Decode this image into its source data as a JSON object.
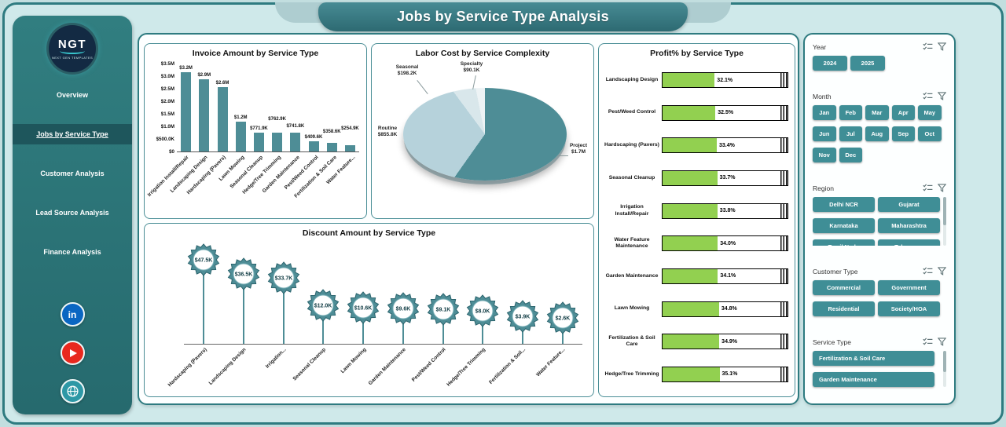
{
  "header": {
    "title": "Jobs by Service Type Analysis"
  },
  "sidebar": {
    "logo_text": "NGT",
    "logo_subtext": "NEXT GEN TEMPLATES",
    "items": [
      {
        "label": "Overview",
        "active": false
      },
      {
        "label": "Jobs by Service Type",
        "active": true
      },
      {
        "label": "Customer Analysis",
        "active": false
      },
      {
        "label": "Lead Source Analysis",
        "active": false
      },
      {
        "label": "Finance Analysis",
        "active": false
      }
    ],
    "social_icons": [
      "linkedin-icon",
      "youtube-icon",
      "globe-icon"
    ]
  },
  "filters": {
    "header_icons": [
      "checklist-icon",
      "funnel-icon"
    ],
    "sections": [
      {
        "id": "year",
        "label": "Year",
        "options": [
          "2024",
          "2025"
        ],
        "layout": "lay-year",
        "clipped": false,
        "scrollbar": false
      },
      {
        "id": "month",
        "label": "Month",
        "options": [
          "Jan",
          "Feb",
          "Mar",
          "Apr",
          "May",
          "Jun",
          "Jul",
          "Aug",
          "Sep",
          "Oct",
          "Nov",
          "Dec"
        ],
        "layout": "lay-month",
        "clipped": false,
        "scrollbar": false
      },
      {
        "id": "region",
        "label": "Region",
        "options": [
          "Delhi NCR",
          "Gujarat",
          "Karnataka",
          "Maharashtra",
          "Tamil Nadu",
          "Telangana"
        ],
        "layout": "lay-two",
        "clipped": true,
        "scrollbar": true
      },
      {
        "id": "customer-type",
        "label": "Customer Type",
        "options": [
          "Commercial",
          "Government",
          "Residential",
          "Society/HOA"
        ],
        "layout": "lay-two",
        "clipped": false,
        "scrollbar": false
      },
      {
        "id": "service-type",
        "label": "Service Type",
        "options": [
          "Fertilization & Soil Care",
          "Garden Maintenance"
        ],
        "layout": "lay-full",
        "clipped": false,
        "scrollbar": true
      }
    ]
  },
  "chart_data": [
    {
      "type": "bar",
      "title": "Invoice Amount by Service Type",
      "categories": [
        "Irrigation Install/Repair",
        "Landscaping Design",
        "Hardscaping (Pavers)",
        "Lawn Mowing",
        "Seasonal Cleanup",
        "Hedge/Tree Trimming",
        "Garden Maintenance",
        "Pest/Weed Control",
        "Fertilization & Soil Care",
        "Water Feature..."
      ],
      "values": [
        3200000,
        2900000,
        2600000,
        1200000,
        771900,
        762900,
        741800,
        409600,
        358600,
        254900
      ],
      "value_labels": [
        "$3.2M",
        "$2.9M",
        "$2.6M",
        "$1.2M",
        "$771.9K",
        "$762.9K",
        "$741.8K",
        "$409.6K",
        "$358.6K",
        "$254.9K"
      ],
      "y_ticks": [
        "$3.5M",
        "$3.0M",
        "$2.5M",
        "$2.0M",
        "$1.5M",
        "$1.0M",
        "$500.0K",
        "$0"
      ],
      "ylim": [
        0,
        3500000
      ],
      "grid": false,
      "xlabel": "",
      "ylabel": ""
    },
    {
      "type": "pie",
      "title": "Labor Cost by Service Complexity",
      "slices": [
        {
          "label": "Project",
          "value": 1700000,
          "value_label": "$1.7M"
        },
        {
          "label": "Routine",
          "value": 855800,
          "value_label": "$855.8K"
        },
        {
          "label": "Seasonal",
          "value": 198200,
          "value_label": "$198.2K"
        },
        {
          "label": "Specialty",
          "value": 90100,
          "value_label": "$90.1K"
        }
      ]
    },
    {
      "type": "bar",
      "orientation": "horizontal",
      "title": "Profit% by Service Type",
      "categories": [
        "Landscaping Design",
        "Pest/Weed Control",
        "Hardscaping (Pavers)",
        "Seasonal Cleanup",
        "Irrigation Install/Repair",
        "Water Feature Maintenance",
        "Garden Maintenance",
        "Lawn Mowing",
        "Fertilization & Soil Care",
        "Hedge/Tree Trimming"
      ],
      "values": [
        32.1,
        32.5,
        33.4,
        33.7,
        33.8,
        34.0,
        34.1,
        34.8,
        34.9,
        35.1
      ],
      "value_labels": [
        "32.1%",
        "32.5%",
        "33.4%",
        "33.7%",
        "33.8%",
        "34.0%",
        "34.1%",
        "34.8%",
        "34.9%",
        "35.1%"
      ]
    },
    {
      "type": "bar",
      "style": "lollipop-star",
      "title": "Discount Amount by Service Type",
      "categories": [
        "Hardscaping (Pavers)",
        "Landscaping Design",
        "Irrigation...",
        "Seasonal Cleanup",
        "Lawn Mowing",
        "Garden Maintenance",
        "Pest/Weed Control",
        "Hedge/Tree Trimming",
        "Fertilization & Soil...",
        "Water Feature..."
      ],
      "values": [
        47500,
        36500,
        33700,
        12000,
        10600,
        9600,
        9100,
        8000,
        3900,
        2600
      ],
      "value_labels": [
        "$47.5K",
        "$36.5K",
        "$33.7K",
        "$12.0K",
        "$10.6K",
        "$9.6K",
        "$9.1K",
        "$8.0K",
        "$3.9K",
        "$2.6K"
      ]
    }
  ],
  "colors": {
    "accent": "#3F8E96",
    "bar": "#4E8D96",
    "star_stroke": "#2C656E",
    "green_fill": "#92D050",
    "sidebar": "#2E7678",
    "banner": "#2F6E76",
    "pie_project": "#4E8D96",
    "pie_routine": "#B6D2DB",
    "pie_seasonal": "#D9E7EB",
    "pie_specialty": "#EDF3F5",
    "linkedin": "#0A66C2",
    "youtube": "#E8281E",
    "globe": "#2D98A6"
  }
}
